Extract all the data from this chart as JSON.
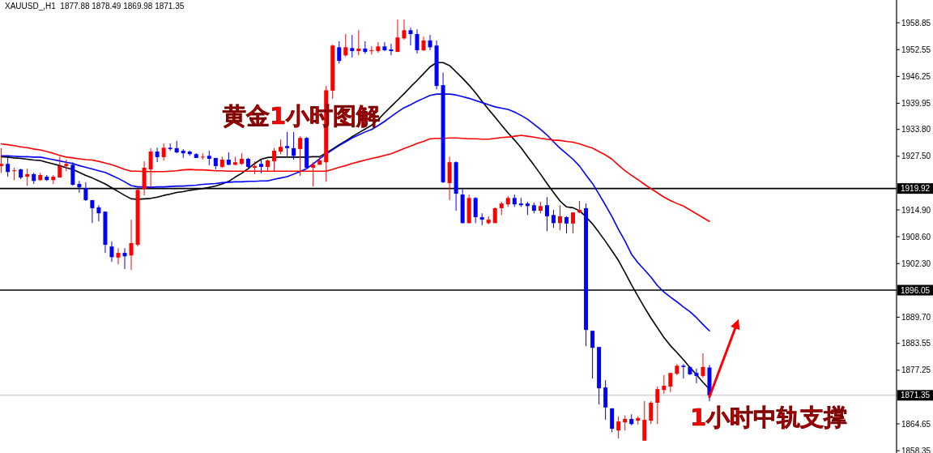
{
  "chart_data": {
    "type": "candlestick",
    "title": "XAUUSD_,H1  1877.88 1878.49 1869.98 1871.35",
    "categories": [
      null,
      null,
      null,
      null,
      null,
      null,
      null,
      null,
      null,
      null,
      null,
      null,
      null,
      null,
      null,
      null,
      null,
      null,
      null,
      null,
      null,
      null,
      null,
      null,
      null,
      null,
      null,
      null,
      null,
      null,
      null,
      null,
      null,
      null,
      null,
      null,
      null,
      null,
      null,
      null,
      null,
      null,
      null,
      null,
      null,
      null,
      null,
      null,
      null,
      null,
      null,
      null,
      null,
      null,
      null,
      null,
      null,
      null,
      null,
      null,
      null,
      null,
      null,
      null,
      null,
      null,
      null,
      null,
      null,
      null,
      null,
      null,
      null,
      null,
      null,
      null,
      null,
      null,
      null,
      null,
      null,
      null,
      null,
      null,
      null,
      null,
      null,
      null,
      null,
      null,
      null,
      null,
      null,
      null,
      null,
      null,
      null,
      null,
      null,
      null,
      null,
      null,
      null,
      null,
      null,
      null,
      null,
      null,
      null,
      null
    ],
    "ohlc": [
      [
        1925.2,
        1929.4,
        1923.6,
        1925.7
      ],
      [
        1925.7,
        1927.4,
        1922.7,
        1923.8
      ],
      [
        1924.0,
        1924.8,
        1921.9,
        1924.2
      ],
      [
        1924.4,
        1924.6,
        1922.1,
        1922.5
      ],
      [
        1922.7,
        1924.6,
        1920.6,
        1923.3
      ],
      [
        1923.3,
        1923.6,
        1921.0,
        1921.7
      ],
      [
        1921.9,
        1923.6,
        1921.7,
        1923.1
      ],
      [
        1922.7,
        1923.1,
        1921.7,
        1921.9
      ],
      [
        1921.9,
        1923.1,
        1921.0,
        1922.7
      ],
      [
        1922.5,
        1927.4,
        1922.5,
        1925.2
      ],
      [
        1925.2,
        1926.7,
        1924.0,
        1925.7
      ],
      [
        1925.5,
        1926.1,
        1920.6,
        1920.8
      ],
      [
        1921.0,
        1921.7,
        1918.9,
        1920.2
      ],
      [
        1920.0,
        1921.4,
        1917.0,
        1917.2
      ],
      [
        1917.2,
        1917.2,
        1911.8,
        1915.3
      ],
      [
        1915.5,
        1916.0,
        1912.2,
        1914.1
      ],
      [
        1914.5,
        1914.5,
        1904.8,
        1906.7
      ],
      [
        1906.3,
        1907.5,
        1902.7,
        1903.8
      ],
      [
        1903.7,
        1905.9,
        1902.1,
        1904.8
      ],
      [
        1904.8,
        1905.9,
        1901.0,
        1904.0
      ],
      [
        1904.2,
        1912.6,
        1900.8,
        1907.1
      ],
      [
        1906.7,
        1919.8,
        1906.3,
        1919.6
      ],
      [
        1919.8,
        1926.3,
        1918.3,
        1924.8
      ],
      [
        1924.4,
        1929.4,
        1920.0,
        1928.6
      ],
      [
        1928.6,
        1929.5,
        1926.1,
        1927.3
      ],
      [
        1927.3,
        1930.5,
        1926.5,
        1929.5
      ],
      [
        1929.5,
        1930.5,
        1928.8,
        1929.2
      ],
      [
        1929.4,
        1931.1,
        1928.2,
        1928.4
      ],
      [
        1928.8,
        1929.2,
        1927.1,
        1928.2
      ],
      [
        1928.6,
        1928.8,
        1927.6,
        1928.0
      ],
      [
        1928.0,
        1928.2,
        1927.1,
        1927.1
      ],
      [
        1927.3,
        1928.2,
        1926.7,
        1927.4
      ],
      [
        1927.6,
        1928.8,
        1925.4,
        1926.9
      ],
      [
        1927.1,
        1927.1,
        1924.4,
        1925.2
      ],
      [
        1925.0,
        1927.4,
        1924.8,
        1926.7
      ],
      [
        1926.7,
        1928.4,
        1925.4,
        1925.5
      ],
      [
        1925.5,
        1927.4,
        1925.4,
        1926.1
      ],
      [
        1925.7,
        1928.2,
        1925.5,
        1926.9
      ],
      [
        1926.9,
        1927.1,
        1924.8,
        1925.0
      ],
      [
        1924.8,
        1926.3,
        1923.3,
        1925.2
      ],
      [
        1925.7,
        1926.7,
        1923.5,
        1925.0
      ],
      [
        1925.0,
        1926.7,
        1923.8,
        1926.5
      ],
      [
        1926.3,
        1929.4,
        1923.8,
        1928.8
      ],
      [
        1928.6,
        1931.4,
        1928.0,
        1929.7
      ],
      [
        1929.9,
        1933.2,
        1927.4,
        1929.4
      ],
      [
        1929.4,
        1933.2,
        1926.7,
        1927.6
      ],
      [
        1929.2,
        1932.2,
        1922.9,
        1931.8
      ],
      [
        1931.8,
        1932.0,
        1924.8,
        1924.8
      ],
      [
        1924.8,
        1926.1,
        1920.4,
        1925.5
      ],
      [
        1925.5,
        1927.4,
        1925.5,
        1926.5
      ],
      [
        1926.1,
        1944.0,
        1921.5,
        1943.0
      ],
      [
        1942.9,
        1953.7,
        1941.0,
        1953.5
      ],
      [
        1953.1,
        1954.5,
        1949.3,
        1949.9
      ],
      [
        1951.2,
        1956.2,
        1950.9,
        1953.1
      ],
      [
        1952.9,
        1956.0,
        1950.7,
        1952.2
      ],
      [
        1952.2,
        1957.1,
        1951.2,
        1952.8
      ],
      [
        1952.8,
        1954.5,
        1951.6,
        1952.0
      ],
      [
        1952.2,
        1953.3,
        1951.4,
        1952.4
      ],
      [
        1952.2,
        1954.3,
        1951.8,
        1953.3
      ],
      [
        1953.3,
        1954.3,
        1952.2,
        1952.4
      ],
      [
        1952.6,
        1953.9,
        1951.2,
        1952.2
      ],
      [
        1952.0,
        1959.6,
        1952.0,
        1955.4
      ],
      [
        1955.2,
        1959.6,
        1954.9,
        1957.1
      ],
      [
        1957.1,
        1957.7,
        1953.5,
        1956.2
      ],
      [
        1956.2,
        1957.3,
        1951.6,
        1952.4
      ],
      [
        1952.4,
        1955.6,
        1952.2,
        1954.7
      ],
      [
        1954.7,
        1956.0,
        1952.4,
        1953.1
      ],
      [
        1953.5,
        1954.7,
        1943.2,
        1944.0
      ],
      [
        1944.2,
        1947.2,
        1921.2,
        1921.4
      ],
      [
        1921.2,
        1927.4,
        1917.2,
        1926.1
      ],
      [
        1926.1,
        1926.3,
        1914.7,
        1918.7
      ],
      [
        1918.5,
        1919.8,
        1911.7,
        1911.8
      ],
      [
        1911.8,
        1918.5,
        1911.7,
        1917.7
      ],
      [
        1917.7,
        1917.9,
        1911.8,
        1913.2
      ],
      [
        1913.2,
        1914.1,
        1911.3,
        1912.6
      ],
      [
        1911.8,
        1913.4,
        1911.5,
        1912.6
      ],
      [
        1911.8,
        1915.5,
        1911.8,
        1915.3
      ],
      [
        1915.3,
        1916.8,
        1913.7,
        1916.4
      ],
      [
        1916.2,
        1918.1,
        1915.6,
        1917.7
      ],
      [
        1917.7,
        1918.5,
        1915.6,
        1916.2
      ],
      [
        1916.4,
        1917.7,
        1915.6,
        1916.0
      ],
      [
        1916.4,
        1916.8,
        1913.7,
        1915.8
      ],
      [
        1916.0,
        1916.6,
        1914.1,
        1914.7
      ],
      [
        1914.7,
        1916.8,
        1914.1,
        1915.8
      ],
      [
        1916.0,
        1917.9,
        1909.9,
        1913.4
      ],
      [
        1913.7,
        1914.9,
        1910.7,
        1911.8
      ],
      [
        1911.8,
        1916.0,
        1910.1,
        1913.4
      ],
      [
        1913.2,
        1913.4,
        1909.4,
        1911.7
      ],
      [
        1911.7,
        1914.3,
        1909.4,
        1914.3
      ],
      [
        1914.3,
        1917.0,
        1914.1,
        1914.9
      ],
      [
        1915.3,
        1916.4,
        1882.9,
        1886.7
      ],
      [
        1886.5,
        1886.5,
        1875.3,
        1882.5
      ],
      [
        1882.7,
        1882.7,
        1869.2,
        1873.0
      ],
      [
        1873.2,
        1874.9,
        1865.6,
        1868.5
      ],
      [
        1868.3,
        1868.3,
        1862.7,
        1863.5
      ],
      [
        1863.1,
        1866.4,
        1861.2,
        1865.2
      ],
      [
        1865.0,
        1866.6,
        1863.1,
        1865.8
      ],
      [
        1865.8,
        1866.9,
        1864.3,
        1864.6
      ],
      [
        1865.4,
        1866.4,
        1864.5,
        1866.0
      ],
      [
        1860.7,
        1870.0,
        1860.7,
        1865.6
      ],
      [
        1865.4,
        1870.0,
        1864.6,
        1869.6
      ],
      [
        1869.6,
        1873.4,
        1864.6,
        1872.8
      ],
      [
        1872.6,
        1876.1,
        1871.7,
        1873.6
      ],
      [
        1873.4,
        1876.6,
        1872.1,
        1876.6
      ],
      [
        1876.4,
        1878.7,
        1876.1,
        1878.3
      ],
      [
        1878.3,
        1878.7,
        1875.3,
        1878.0
      ],
      [
        1878.0,
        1878.0,
        1876.1,
        1876.3
      ],
      [
        1876.6,
        1877.6,
        1874.2,
        1875.9
      ],
      [
        1875.9,
        1881.2,
        1875.5,
        1878.0
      ],
      [
        1877.88,
        1878.49,
        1869.98,
        1871.35
      ]
    ],
    "colors": [
      "#ff0000",
      "#0000ff",
      "#ff0000",
      "#0000ff",
      "#ff0000",
      "#0000ff",
      "#ff0000",
      "#0000ff",
      "#ff0000",
      "#ff0000",
      "#ff0000",
      "#0000ff",
      "#0000ff",
      "#0000ff",
      "#0000ff",
      "#0000ff",
      "#0000ff",
      "#0000ff",
      "#ff0000",
      "#0000ff",
      "#ff0000",
      "#ff0000",
      "#ff0000",
      "#ff0000",
      "#0000ff",
      "#ff0000",
      "#0000ff",
      "#0000ff",
      "#0000ff",
      "#0000ff",
      "#0000ff",
      "#ff0000",
      "#0000ff",
      "#0000ff",
      "#ff0000",
      "#0000ff",
      "#ff0000",
      "#ff0000",
      "#0000ff",
      "#ff0000",
      "#0000ff",
      "#ff0000",
      "#ff0000",
      "#ff0000",
      "#0000ff",
      "#0000ff",
      "#ff0000",
      "#0000ff",
      "#ff0000",
      "#ff0000",
      "#ff0000",
      "#ff0000",
      "#0000ff",
      "#ff0000",
      "#0000ff",
      "#ff0000",
      "#0000ff",
      "#ff0000",
      "#ff0000",
      "#0000ff",
      "#0000ff",
      "#ff0000",
      "#ff0000",
      "#0000ff",
      "#0000ff",
      "#ff0000",
      "#0000ff",
      "#0000ff",
      "#0000ff",
      "#ff0000",
      "#0000ff",
      "#0000ff",
      "#ff0000",
      "#0000ff",
      "#0000ff",
      "#ff0000",
      "#ff0000",
      "#ff0000",
      "#ff0000",
      "#0000ff",
      "#0000ff",
      "#0000ff",
      "#0000ff",
      "#ff0000",
      "#0000ff",
      "#0000ff",
      "#ff0000",
      "#0000ff",
      "#ff0000",
      "#ff0000",
      "#0000ff",
      "#0000ff",
      "#0000ff",
      "#0000ff",
      "#0000ff",
      "#ff0000",
      "#ff0000",
      "#0000ff",
      "#ff0000",
      "#ff0000",
      "#ff0000",
      "#ff0000",
      "#ff0000",
      "#ff0000",
      "#ff0000",
      "#0000ff",
      "#0000ff",
      "#0000ff",
      "#ff0000",
      "#0000ff"
    ],
    "series": [
      {
        "type": "line",
        "color": "#000000",
        "values": [
          1927.4,
          1927.3,
          1927.1,
          1927.0,
          1926.8,
          1926.6,
          1926.5,
          1926.1,
          1925.7,
          1925.3,
          1924.8,
          1924.4,
          1923.7,
          1923.0,
          1922.4,
          1921.7,
          1921.0,
          1920.1,
          1919.2,
          1918.3,
          1917.5,
          1917.4,
          1917.5,
          1917.6,
          1917.9,
          1918.3,
          1918.6,
          1919.0,
          1919.2,
          1919.5,
          1919.7,
          1919.9,
          1920.2,
          1920.5,
          1921.0,
          1921.6,
          1922.6,
          1923.5,
          1924.6,
          1925.8,
          1926.8,
          1927.2,
          1927.3,
          1927.3,
          1927.3,
          1927.3,
          1927.3,
          1927.3,
          1927.4,
          1927.4,
          1928.3,
          1929.2,
          1930.2,
          1931.1,
          1932.1,
          1933.0,
          1933.9,
          1934.8,
          1936.1,
          1937.7,
          1939.2,
          1940.7,
          1942.2,
          1943.8,
          1945.3,
          1946.9,
          1948.5,
          1949.5,
          1949.5,
          1948.8,
          1947.3,
          1945.8,
          1944.2,
          1942.4,
          1940.4,
          1938.5,
          1936.7,
          1934.8,
          1933.0,
          1931.3,
          1929.5,
          1927.4,
          1925.4,
          1923.3,
          1921.1,
          1919.0,
          1917.0,
          1915.6,
          1915.4,
          1914.7,
          1913.3,
          1911.6,
          1909.6,
          1907.5,
          1905.3,
          1903.0,
          1900.2,
          1897.3,
          1894.6,
          1892.0,
          1889.5,
          1887.2,
          1884.9,
          1883.0,
          1881.4,
          1879.7,
          1877.9,
          1876.2,
          1874.4,
          1872.8
        ]
      },
      {
        "type": "line",
        "color": "#0000ff",
        "values": [
          1927.6,
          1927.6,
          1927.5,
          1927.4,
          1927.4,
          1927.3,
          1927.3,
          1927.0,
          1926.7,
          1926.4,
          1926.1,
          1925.8,
          1925.3,
          1924.9,
          1924.5,
          1924.1,
          1923.7,
          1923.0,
          1922.3,
          1921.5,
          1920.6,
          1920.3,
          1920.3,
          1920.2,
          1920.3,
          1920.3,
          1920.4,
          1920.5,
          1920.5,
          1920.6,
          1920.7,
          1920.9,
          1921.0,
          1921.1,
          1921.3,
          1921.4,
          1921.5,
          1921.5,
          1921.6,
          1921.6,
          1921.7,
          1921.7,
          1922.1,
          1922.4,
          1922.7,
          1923.3,
          1923.9,
          1924.6,
          1925.7,
          1926.9,
          1928.0,
          1929.0,
          1930.0,
          1930.9,
          1931.8,
          1932.5,
          1933.2,
          1933.8,
          1934.7,
          1935.7,
          1936.8,
          1937.9,
          1938.9,
          1939.6,
          1940.4,
          1941.1,
          1941.8,
          1942.1,
          1942.1,
          1942.1,
          1941.9,
          1941.5,
          1941.1,
          1940.6,
          1940.1,
          1939.6,
          1939.1,
          1938.8,
          1938.5,
          1937.9,
          1937.1,
          1936.2,
          1935.0,
          1933.8,
          1932.5,
          1930.9,
          1929.4,
          1928.1,
          1926.8,
          1925.2,
          1923.1,
          1921.1,
          1918.6,
          1916.0,
          1913.3,
          1910.3,
          1907.6,
          1904.5,
          1902.5,
          1900.8,
          1899.1,
          1897.1,
          1895.6,
          1894.4,
          1893.3,
          1892.1,
          1891.0,
          1889.6,
          1888.0,
          1886.5
        ]
      },
      {
        "type": "line",
        "color": "#ff0000",
        "values": [
          1930.4,
          1930.2,
          1930.0,
          1929.7,
          1929.5,
          1929.2,
          1929.0,
          1928.6,
          1928.2,
          1927.7,
          1927.3,
          1927.1,
          1926.9,
          1926.7,
          1926.6,
          1926.3,
          1925.9,
          1925.5,
          1925.0,
          1924.4,
          1924.0,
          1924.0,
          1923.9,
          1923.9,
          1923.9,
          1923.9,
          1924.0,
          1924.1,
          1924.3,
          1924.4,
          1924.3,
          1924.3,
          1924.2,
          1924.1,
          1924.1,
          1924.0,
          1924.0,
          1924.0,
          1924.0,
          1924.0,
          1924.0,
          1924.0,
          1924.0,
          1924.0,
          1924.0,
          1924.0,
          1924.0,
          1924.0,
          1924.0,
          1924.0,
          1924.0,
          1924.4,
          1924.9,
          1925.3,
          1925.8,
          1926.2,
          1926.6,
          1927.0,
          1927.3,
          1927.7,
          1928.1,
          1928.7,
          1929.3,
          1929.9,
          1930.5,
          1931.0,
          1931.6,
          1931.7,
          1931.7,
          1931.8,
          1931.8,
          1931.7,
          1931.6,
          1931.6,
          1931.5,
          1931.5,
          1931.7,
          1931.9,
          1932.0,
          1932.2,
          1932.4,
          1932.2,
          1932.0,
          1931.7,
          1931.5,
          1931.3,
          1931.2,
          1931.0,
          1930.8,
          1930.4,
          1929.9,
          1929.4,
          1928.6,
          1927.8,
          1926.8,
          1925.4,
          1924.1,
          1923.0,
          1922.0,
          1920.9,
          1919.9,
          1918.9,
          1917.9,
          1917.1,
          1916.4,
          1915.8,
          1914.9,
          1914.0,
          1913.1,
          1912.2
        ]
      }
    ],
    "ylim": [
      1857.8,
      1964.2
    ],
    "yticks": [
      1958.85,
      1952.55,
      1946.25,
      1939.95,
      {
        "value": 1933.8,
        "label": "1933.80"
      },
      {
        "value": 1927.5,
        "label": "1927.50"
      },
      {
        "value": 1914.9,
        "label": "1914.90"
      },
      {
        "value": 1908.6,
        "label": "1908.60"
      },
      {
        "value": 1902.3,
        "label": "1902.30"
      },
      {
        "value": 1889.7,
        "label": "1889.70"
      },
      1883.55,
      1877.25,
      1864.65,
      1858.35
    ],
    "ref_lines": [
      {
        "axis": "y",
        "value": 1919.92,
        "label": "1919.92",
        "color": "#000000"
      },
      {
        "axis": "y",
        "value": 1896.05,
        "label": "1896.05",
        "color": "#000000"
      },
      {
        "axis": "y",
        "value": 1871.35,
        "label": "1871.35",
        "color": "#c0c0c0"
      }
    ],
    "annotations": [
      "黄金1小时图解",
      "1小时中轨支撑"
    ],
    "tick_labels": "y"
  }
}
